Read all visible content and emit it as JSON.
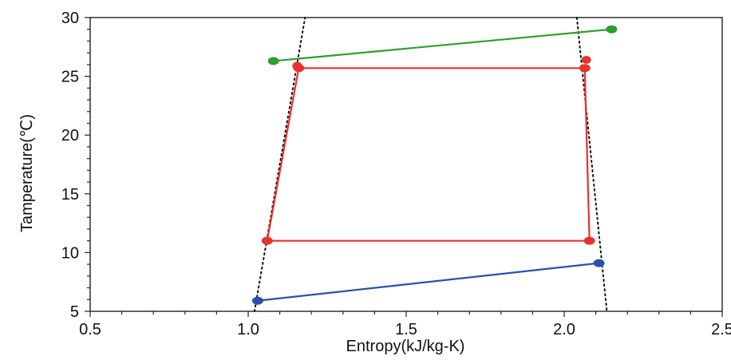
{
  "chart_data": {
    "type": "line",
    "title": "",
    "xlabel": "Entropy(kJ/kg-K)",
    "ylabel": "Tamperature(℃)",
    "xlim": [
      0.5,
      2.5
    ],
    "ylim": [
      5,
      30
    ],
    "x_ticks": [
      0.5,
      1.0,
      1.5,
      2.0,
      2.5
    ],
    "x_tick_labels": [
      "0.5",
      "1.0",
      "1.5",
      "2.0",
      "2.5"
    ],
    "y_ticks": [
      5,
      10,
      15,
      20,
      25,
      30
    ],
    "y_tick_labels": [
      "5",
      "10",
      "15",
      "20",
      "25",
      "30"
    ],
    "grid": false,
    "legend": "none",
    "colors": {
      "green": "#2ca02c",
      "red": "#e8322b",
      "blue": "#2a4fb0",
      "dome": "#111111"
    },
    "series": [
      {
        "color": "green",
        "x": [
          1.08,
          2.15
        ],
        "y": [
          26.3,
          29.0
        ],
        "markers": [
          true,
          true
        ]
      },
      {
        "color": "red",
        "closed": true,
        "x": [
          1.16,
          2.065,
          2.08,
          1.06
        ],
        "y": [
          25.7,
          25.7,
          11.0,
          11.0
        ],
        "markers": [
          true,
          true,
          true,
          true
        ],
        "extra_markers": [
          {
            "x": 2.07,
            "y": 26.4
          },
          {
            "x": 1.155,
            "y": 25.9
          }
        ]
      },
      {
        "color": "blue",
        "x": [
          1.03,
          2.11
        ],
        "y": [
          5.9,
          9.1
        ],
        "markers": [
          true,
          true
        ]
      }
    ],
    "dome_lines": [
      {
        "x": [
          1.02,
          1.18
        ],
        "y": [
          5,
          30
        ]
      },
      {
        "x": [
          2.04,
          2.135
        ],
        "y": [
          30,
          5
        ]
      }
    ]
  }
}
